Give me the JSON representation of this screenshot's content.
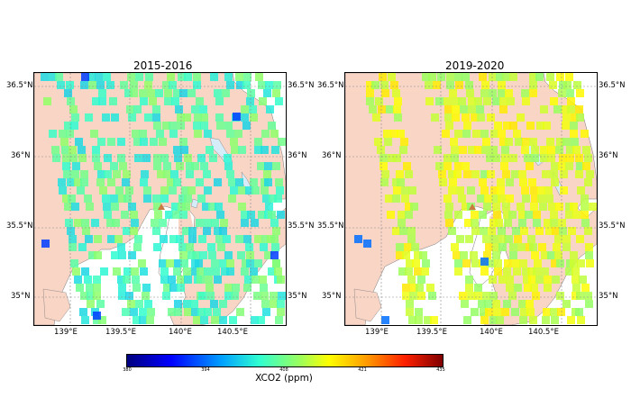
{
  "panels": [
    {
      "title": "2015-2016",
      "xticks": [
        "139°E",
        "139.5°E",
        "140°E",
        "140.5°E"
      ],
      "yticks": [
        "36.5°N",
        "36°N",
        "35.5°N",
        "35°N"
      ]
    },
    {
      "title": "2019-2020",
      "xticks": [
        "139°E",
        "139.5°E",
        "140°E",
        "140.5°E"
      ],
      "yticks": [
        "36.5°N",
        "36°N",
        "35.5°N",
        "35°N"
      ]
    }
  ],
  "colorbar": {
    "label": "XCO2 (ppm)",
    "ticks": [
      "380",
      "394",
      "408",
      "421",
      "435"
    ]
  },
  "colors": {
    "land": "#f9d5c6",
    "water": "#d6ecf8",
    "grid": "#8a8a8a",
    "volcano": "#c87a40"
  }
}
